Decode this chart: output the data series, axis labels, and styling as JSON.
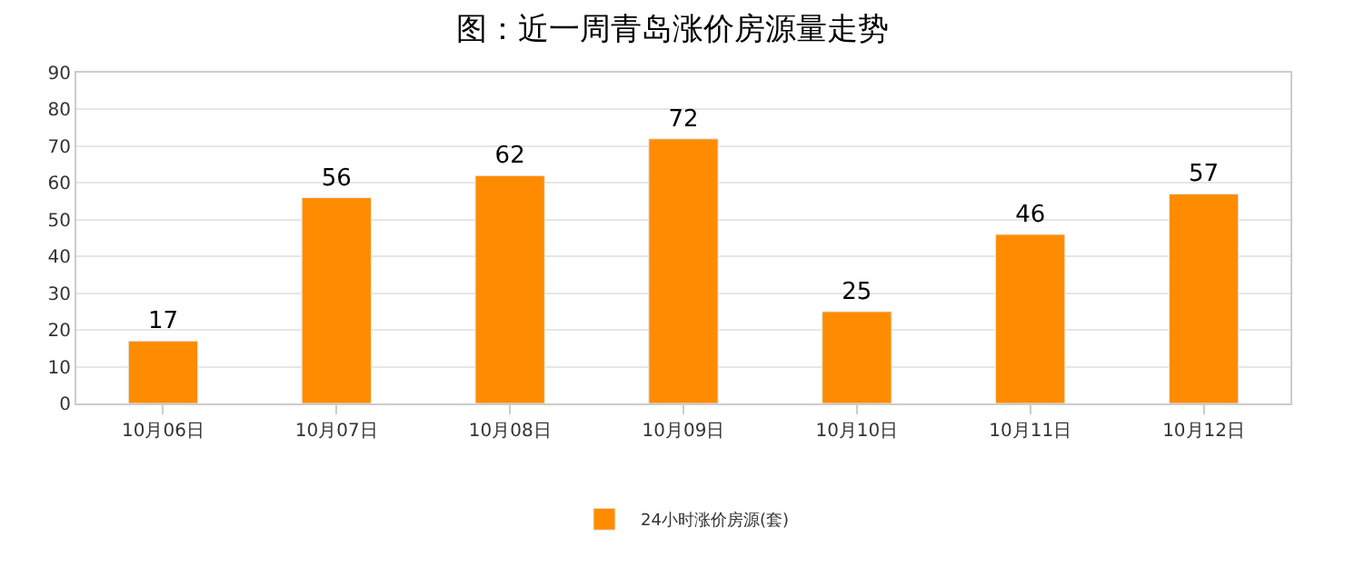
{
  "chart_data": {
    "type": "bar",
    "title": "图：近一周青岛涨价房源量走势",
    "categories": [
      "10月06日",
      "10月07日",
      "10月08日",
      "10月09日",
      "10月10日",
      "10月11日",
      "10月12日"
    ],
    "series": [
      {
        "name": "24小时涨价房源(套)",
        "color": "#ff8c00",
        "values": [
          17,
          56,
          62,
          72,
          25,
          46,
          57
        ]
      }
    ],
    "ylim": [
      0,
      90
    ],
    "yticks": [
      0,
      10,
      20,
      30,
      40,
      50,
      60,
      70,
      80,
      90
    ],
    "grid": "y",
    "legend": "bottom",
    "data_labels": true
  }
}
